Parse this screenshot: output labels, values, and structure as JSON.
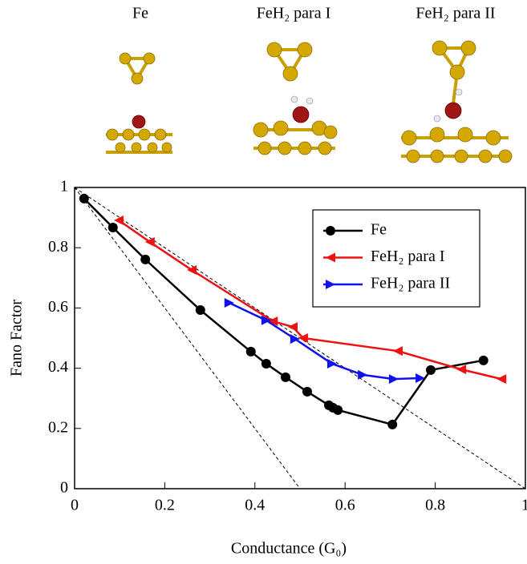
{
  "structures": [
    {
      "label": "Fe"
    },
    {
      "label": "FeH₂ para I"
    },
    {
      "label": "FeH₂ para II"
    }
  ],
  "chart_data": {
    "type": "line",
    "xlabel": "Conductance (G₀)",
    "ylabel": "Fano Factor",
    "xlim": [
      0,
      1
    ],
    "ylim": [
      0,
      1
    ],
    "xticks": [
      0,
      0.2,
      0.4,
      0.6,
      0.8,
      1
    ],
    "yticks": [
      0,
      0.2,
      0.4,
      0.6,
      0.8,
      1
    ],
    "legend": "upper right",
    "series": [
      {
        "name": "Fe",
        "color": "#000000",
        "marker": "circle",
        "x": [
          0.021,
          0.085,
          0.157,
          0.279,
          0.391,
          0.425,
          0.468,
          0.516,
          0.564,
          0.573,
          0.584,
          0.705,
          0.79,
          0.907
        ],
        "values": [
          0.963,
          0.867,
          0.761,
          0.593,
          0.455,
          0.415,
          0.37,
          0.322,
          0.277,
          0.269,
          0.261,
          0.213,
          0.394,
          0.426
        ]
      },
      {
        "name": "FeH₂ para I",
        "color": "#ee1111",
        "marker": "triangle-left",
        "x": [
          0.098,
          0.167,
          0.26,
          0.44,
          0.484,
          0.507,
          0.717,
          0.858,
          0.947
        ],
        "values": [
          0.891,
          0.819,
          0.726,
          0.556,
          0.537,
          0.5,
          0.457,
          0.396,
          0.364
        ]
      },
      {
        "name": "FeH₂ para II",
        "color": "#1111ee",
        "marker": "triangle-right",
        "x": [
          0.343,
          0.425,
          0.489,
          0.571,
          0.639,
          0.708,
          0.767
        ],
        "values": [
          0.617,
          0.559,
          0.497,
          0.415,
          0.378,
          0.364,
          0.367
        ]
      }
    ]
  }
}
